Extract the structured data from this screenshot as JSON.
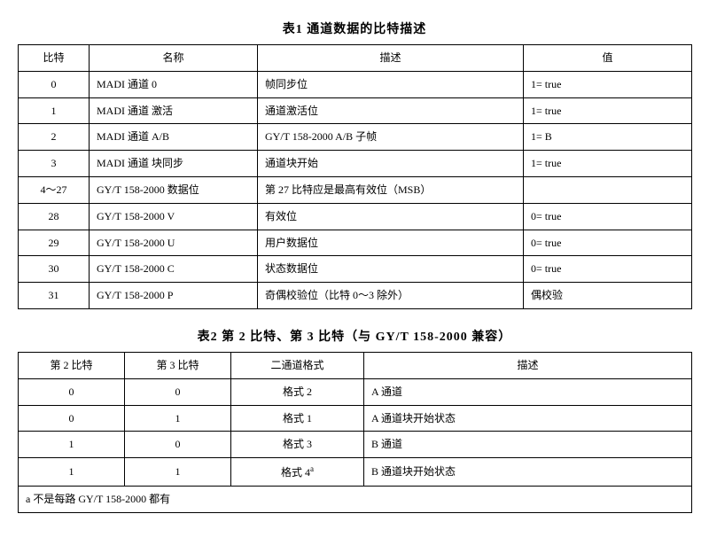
{
  "table1": {
    "caption": "表1  通道数据的比特描述",
    "headers": [
      "比特",
      "名称",
      "描述",
      "值"
    ],
    "col_align": [
      "center",
      "left",
      "left",
      "left"
    ],
    "rows": [
      [
        "0",
        "MADI 通道 0",
        "帧同步位",
        "1= true"
      ],
      [
        "1",
        "MADI 通道 激活",
        "通道激活位",
        "1= true"
      ],
      [
        "2",
        "MADI 通道 A/B",
        "GY/T 158-2000 A/B 子帧",
        "1= B"
      ],
      [
        "3",
        "MADI 通道 块同步",
        "通道块开始",
        "1= true"
      ],
      [
        "4～27",
        "GY/T 158-2000 数据位",
        "第 27 比特应是最高有效位（MSB）",
        ""
      ],
      [
        "28",
        "GY/T 158-2000 V",
        "有效位",
        "0= true"
      ],
      [
        "29",
        "GY/T 158-2000 U",
        "用户数据位",
        "0= true"
      ],
      [
        "30",
        "GY/T 158-2000 C",
        "状态数据位",
        "0= true"
      ],
      [
        "31",
        "GY/T 158-2000 P",
        "奇偶校验位（比特 0～3 除外）",
        "偶校验"
      ]
    ]
  },
  "table2": {
    "caption": "表2  第 2 比特、第 3 比特（与 GY/T 158-2000 兼容）",
    "headers": [
      "第 2 比特",
      "第 3 比特",
      "二通道格式",
      "描述"
    ],
    "col_align": [
      "center",
      "center",
      "center",
      "left"
    ],
    "rows": [
      [
        "0",
        "0",
        "格式 2",
        "A 通道"
      ],
      [
        "0",
        "1",
        "格式 1",
        "A 通道块开始状态"
      ],
      [
        "1",
        "0",
        "格式 3",
        "B 通道"
      ]
    ],
    "special_row": {
      "c0": "1",
      "c1": "1",
      "c2_prefix": "格式 4",
      "c2_sup": "a",
      "c3": "B 通道块开始状态"
    },
    "footnote": "a 不是每路 GY/T 158-2000 都有"
  }
}
